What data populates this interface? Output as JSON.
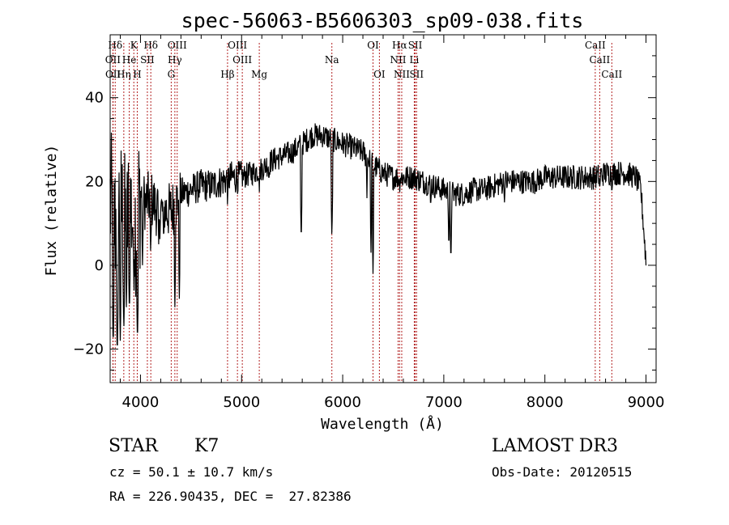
{
  "chart_data": {
    "type": "line",
    "title": "spec-56063-B5606303_sp09-038.fits",
    "xlabel": "Wavelength (Å)",
    "ylabel": "Flux (relative)",
    "xlim": [
      3700,
      9100
    ],
    "ylim": [
      -28,
      55
    ],
    "x_ticks": [
      4000,
      5000,
      6000,
      7000,
      8000,
      9000
    ],
    "x_tick_labels": [
      "4000",
      "5000",
      "6000",
      "7000",
      "8000",
      "9000"
    ],
    "y_ticks": [
      -20,
      0,
      20,
      40
    ],
    "y_tick_labels": [
      "−20",
      "0",
      "20",
      "40"
    ],
    "line_color": "#000000",
    "marker_color": "#b22222",
    "spectrum_anchors": [
      [
        3700,
        15
      ],
      [
        3750,
        10
      ],
      [
        3800,
        15
      ],
      [
        3850,
        9
      ],
      [
        3900,
        14
      ],
      [
        3950,
        10
      ],
      [
        4000,
        17
      ],
      [
        4050,
        15
      ],
      [
        4100,
        16
      ],
      [
        4150,
        14
      ],
      [
        4200,
        13
      ],
      [
        4250,
        13
      ],
      [
        4300,
        13
      ],
      [
        4350,
        15
      ],
      [
        4400,
        17
      ],
      [
        4500,
        18
      ],
      [
        4600,
        19
      ],
      [
        4700,
        19
      ],
      [
        4800,
        20
      ],
      [
        4900,
        21
      ],
      [
        5000,
        21
      ],
      [
        5100,
        22
      ],
      [
        5200,
        23
      ],
      [
        5300,
        25
      ],
      [
        5400,
        26
      ],
      [
        5500,
        27
      ],
      [
        5600,
        29
      ],
      [
        5700,
        31
      ],
      [
        5800,
        31
      ],
      [
        5900,
        30
      ],
      [
        6000,
        29
      ],
      [
        6100,
        28
      ],
      [
        6200,
        27
      ],
      [
        6300,
        24
      ],
      [
        6400,
        22
      ],
      [
        6500,
        21
      ],
      [
        6600,
        21
      ],
      [
        6700,
        21
      ],
      [
        6800,
        20
      ],
      [
        6900,
        19
      ],
      [
        7000,
        18
      ],
      [
        7100,
        17
      ],
      [
        7200,
        17
      ],
      [
        7300,
        18
      ],
      [
        7400,
        18
      ],
      [
        7500,
        19
      ],
      [
        7600,
        20
      ],
      [
        7700,
        20
      ],
      [
        7800,
        20
      ],
      [
        7900,
        20
      ],
      [
        8000,
        21
      ],
      [
        8100,
        21
      ],
      [
        8200,
        21
      ],
      [
        8300,
        21
      ],
      [
        8400,
        21
      ],
      [
        8500,
        21
      ],
      [
        8600,
        22
      ],
      [
        8700,
        22
      ],
      [
        8800,
        22
      ],
      [
        8900,
        21
      ],
      [
        8950,
        18
      ],
      [
        9000,
        1
      ]
    ],
    "spectrum_dips": [
      [
        3730,
        -20
      ],
      [
        3770,
        -22
      ],
      [
        3800,
        -18
      ],
      [
        3835,
        -16
      ],
      [
        3860,
        -10
      ],
      [
        3890,
        -12
      ],
      [
        3935,
        -6
      ],
      [
        3970,
        -19
      ],
      [
        4020,
        0
      ],
      [
        4101,
        2
      ],
      [
        4180,
        5
      ],
      [
        4227,
        6
      ],
      [
        4340,
        -10
      ],
      [
        4384,
        -8
      ],
      [
        4861,
        13
      ],
      [
        5175,
        16
      ],
      [
        5270,
        18
      ],
      [
        5590,
        5
      ],
      [
        5893,
        6
      ],
      [
        6240,
        16
      ],
      [
        6280,
        3
      ],
      [
        6300,
        -2
      ],
      [
        6563,
        16
      ],
      [
        6870,
        12
      ],
      [
        7050,
        3
      ],
      [
        7070,
        0
      ],
      [
        7600,
        15
      ],
      [
        8542,
        16
      ],
      [
        8662,
        15
      ]
    ],
    "noise_amplitude": 3,
    "spectral_lines": [
      {
        "label": "Hδ",
        "x": 3750,
        "row": 0
      },
      {
        "label": "K",
        "x": 3934,
        "row": 0
      },
      {
        "label": "Hδ",
        "x": 4102,
        "row": 0
      },
      {
        "label": "OIII",
        "x": 4363,
        "row": 0
      },
      {
        "label": "OIII",
        "x": 4959,
        "row": 0
      },
      {
        "label": "OI",
        "x": 6300,
        "row": 0
      },
      {
        "label": "Hα",
        "x": 6563,
        "row": 0
      },
      {
        "label": "SII",
        "x": 6717,
        "row": 0
      },
      {
        "label": "CaII",
        "x": 8498,
        "row": 0
      },
      {
        "label": "OII",
        "x": 3727,
        "row": 1
      },
      {
        "label": "He",
        "x": 3889,
        "row": 1
      },
      {
        "label": "SII",
        "x": 4068,
        "row": 1
      },
      {
        "label": "Hγ",
        "x": 4340,
        "row": 1
      },
      {
        "label": "OIII",
        "x": 5007,
        "row": 1
      },
      {
        "label": "Na",
        "x": 5893,
        "row": 1
      },
      {
        "label": "NII",
        "x": 6548,
        "row": 1
      },
      {
        "label": "Li",
        "x": 6708,
        "row": 1
      },
      {
        "label": "CaII",
        "x": 8542,
        "row": 1
      },
      {
        "label": "OII",
        "x": 3729,
        "row": 2
      },
      {
        "label": "Hη",
        "x": 3835,
        "row": 2
      },
      {
        "label": "H",
        "x": 3968,
        "row": 2
      },
      {
        "label": "G",
        "x": 4304,
        "row": 2
      },
      {
        "label": "Hβ",
        "x": 4861,
        "row": 2
      },
      {
        "label": "Mg",
        "x": 5175,
        "row": 2
      },
      {
        "label": "OI",
        "x": 6363,
        "row": 2
      },
      {
        "label": "NII",
        "x": 6584,
        "row": 2
      },
      {
        "label": "SII",
        "x": 6731,
        "row": 2
      },
      {
        "label": "CaII",
        "x": 8662,
        "row": 2
      }
    ]
  },
  "info": {
    "class": "STAR",
    "subclass": "K7",
    "velocity": "cz = 50.1 ± 10.7 km/s",
    "coords": "RA = 226.90435, DEC =  27.82386",
    "survey": "LAMOST DR3",
    "obs_date": "Obs-Date: 20120515"
  }
}
